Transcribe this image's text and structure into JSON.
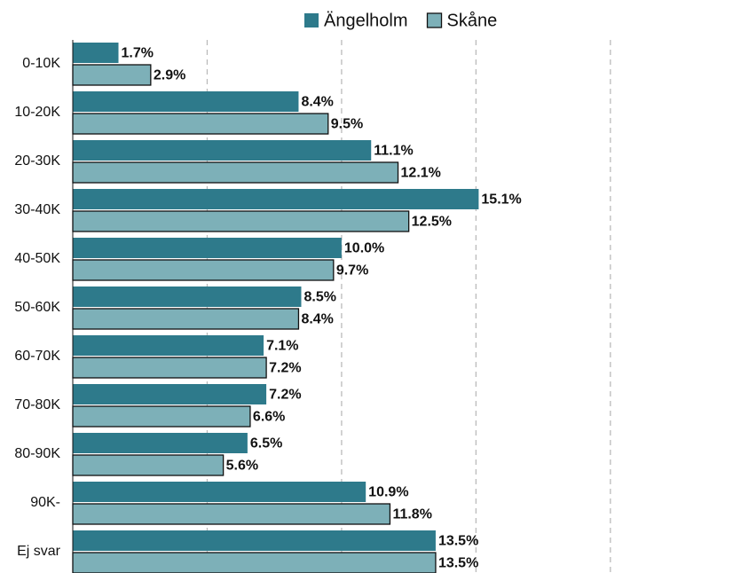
{
  "chart_data": {
    "type": "barh",
    "categories": [
      "0-10K",
      "10-20K",
      "20-30K",
      "30-40K",
      "40-50K",
      "50-60K",
      "60-70K",
      "70-80K",
      "80-90K",
      "90K-",
      "Ej svar"
    ],
    "series": [
      {
        "name": "Ängelholm",
        "color": "#2e7a8b",
        "values": [
          1.7,
          8.4,
          11.1,
          15.1,
          10.0,
          8.5,
          7.1,
          7.2,
          6.5,
          10.9,
          13.5
        ],
        "value_labels": [
          "1.7%",
          "8.4%",
          "11.1%",
          "15.1%",
          "10.0%",
          "8.5%",
          "7.1%",
          "7.2%",
          "6.5%",
          "10.9%",
          "13.5%"
        ]
      },
      {
        "name": "Skåne",
        "color": "#7db0b8",
        "values": [
          2.9,
          9.5,
          12.1,
          12.5,
          9.7,
          8.4,
          7.2,
          6.6,
          5.6,
          11.8,
          13.5
        ],
        "value_labels": [
          "2.9%",
          "9.5%",
          "12.1%",
          "12.5%",
          "9.7%",
          "8.4%",
          "7.2%",
          "6.6%",
          "5.6%",
          "11.8%",
          "13.5%"
        ]
      }
    ],
    "xlim": [
      0,
      24
    ],
    "xticks": [
      5,
      10,
      15,
      20
    ],
    "grid": true,
    "legend": "top"
  }
}
